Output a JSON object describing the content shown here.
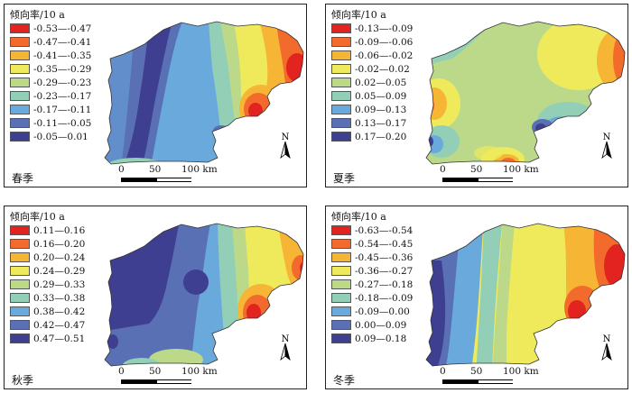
{
  "legend_title": "倾向率/10 a",
  "scale": {
    "t0": "0",
    "t1": "50",
    "t2": "100 km"
  },
  "north_label": "N",
  "panels": [
    {
      "season": "春季",
      "legend": [
        {
          "label": "-0.53—-0.47",
          "color": "#e2231f"
        },
        {
          "label": "-0.47—-0.41",
          "color": "#f26b2c"
        },
        {
          "label": "-0.41—-0.35",
          "color": "#f7b536"
        },
        {
          "label": "-0.35—-0.29",
          "color": "#eeea5b"
        },
        {
          "label": "-0.29—-0.23",
          "color": "#bcd98a"
        },
        {
          "label": "-0.23—-0.17",
          "color": "#92cfb6"
        },
        {
          "label": "-0.17—-0.11",
          "color": "#6aa9dc"
        },
        {
          "label": "-0.11—-0.05",
          "color": "#5a70b5"
        },
        {
          "label": "-0.05—0.01",
          "color": "#3f3f91"
        }
      ]
    },
    {
      "season": "夏季",
      "legend": [
        {
          "label": "-0.13—-0.09",
          "color": "#e2231f"
        },
        {
          "label": "-0.09—-0.06",
          "color": "#f26b2c"
        },
        {
          "label": "-0.06—-0.02",
          "color": "#f7b536"
        },
        {
          "label": "-0.02—0.02",
          "color": "#eeea5b"
        },
        {
          "label": "0.02—0.05",
          "color": "#bcd98a"
        },
        {
          "label": "0.05—0.09",
          "color": "#92cfb6"
        },
        {
          "label": "0.09—0.13",
          "color": "#6aa9dc"
        },
        {
          "label": "0.13—0.17",
          "color": "#5a70b5"
        },
        {
          "label": "0.17—0.20",
          "color": "#3f3f91"
        }
      ]
    },
    {
      "season": "秋季",
      "legend": [
        {
          "label": "0.11—0.16",
          "color": "#e2231f"
        },
        {
          "label": "0.16—0.20",
          "color": "#f26b2c"
        },
        {
          "label": "0.20—0.24",
          "color": "#f7b536"
        },
        {
          "label": "0.24—0.29",
          "color": "#eeea5b"
        },
        {
          "label": "0.29—0.33",
          "color": "#bcd98a"
        },
        {
          "label": "0.33—0.38",
          "color": "#92cfb6"
        },
        {
          "label": "0.38—0.42",
          "color": "#6aa9dc"
        },
        {
          "label": "0.42—0.47",
          "color": "#5a70b5"
        },
        {
          "label": "0.47—0.51",
          "color": "#3f3f91"
        }
      ]
    },
    {
      "season": "冬季",
      "legend": [
        {
          "label": "-0.63—-0.54",
          "color": "#e2231f"
        },
        {
          "label": "-0.54—-0.45",
          "color": "#f26b2c"
        },
        {
          "label": "-0.45—-0.36",
          "color": "#f7b536"
        },
        {
          "label": "-0.36—-0.27",
          "color": "#eeea5b"
        },
        {
          "label": "-0.27—-0.18",
          "color": "#bcd98a"
        },
        {
          "label": "-0.18—-0.09",
          "color": "#92cfb6"
        },
        {
          "label": "-0.09—0.00",
          "color": "#6aa9dc"
        },
        {
          "label": "0.00—0.09",
          "color": "#5a70b5"
        },
        {
          "label": "0.09—0.18",
          "color": "#3f3f91"
        }
      ]
    }
  ]
}
